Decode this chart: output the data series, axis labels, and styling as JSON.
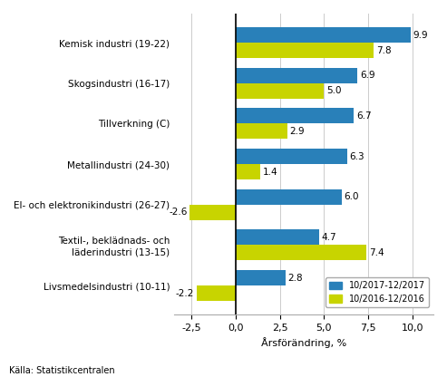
{
  "categories": [
    "Kemisk industri (19-22)",
    "Skogsindustri (16-17)",
    "Tillverkning (C)",
    "Metallindustri (24-30)",
    "El- och elektronikindustri (26-27)",
    "Textil-, beklädnads- och\nläderindustri (13-15)",
    "Livsmedelsindustri (10-11)"
  ],
  "series_2017": [
    9.9,
    6.9,
    6.7,
    6.3,
    6.0,
    4.7,
    2.8
  ],
  "series_2016": [
    7.8,
    5.0,
    2.9,
    1.4,
    -2.6,
    7.4,
    -2.2
  ],
  "color_2017": "#2980B9",
  "color_2016": "#C8D400",
  "xlabel": "Årsförändring, %",
  "xlim": [
    -3.5,
    11.2
  ],
  "xticks": [
    -2.5,
    0.0,
    2.5,
    5.0,
    7.5,
    10.0
  ],
  "xtick_labels": [
    "-2,5",
    "0,0",
    "2,5",
    "5,0",
    "7,5",
    "10,0"
  ],
  "legend_2017": "10/2017-12/2017",
  "legend_2016": "10/2016-12/2016",
  "source": "Källa: Statistikcentralen",
  "bar_height": 0.38
}
